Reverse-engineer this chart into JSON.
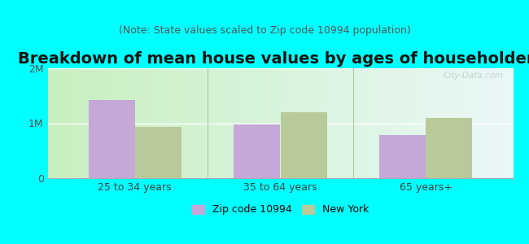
{
  "title": "Breakdown of mean house values by ages of householders",
  "subtitle": "(Note: State values scaled to Zip code 10994 population)",
  "categories": [
    "25 to 34 years",
    "35 to 64 years",
    "65 years+"
  ],
  "zip_values": [
    1420000,
    980000,
    780000
  ],
  "ny_values": [
    930000,
    1200000,
    1090000
  ],
  "ylim": [
    0,
    2000000
  ],
  "yticks": [
    0,
    1000000,
    2000000
  ],
  "ytick_labels": [
    "0",
    "1M",
    "2M"
  ],
  "zip_color": "#c5a8d8",
  "ny_color": "#b8c99a",
  "background_color": "#00ffff",
  "grad_left": "#c8efc0",
  "grad_right": "#eaf8f8",
  "legend_zip": "Zip code 10994",
  "legend_ny": "New York",
  "title_fontsize": 14,
  "subtitle_fontsize": 9,
  "bar_width": 0.32,
  "watermark": "City-Data.com"
}
